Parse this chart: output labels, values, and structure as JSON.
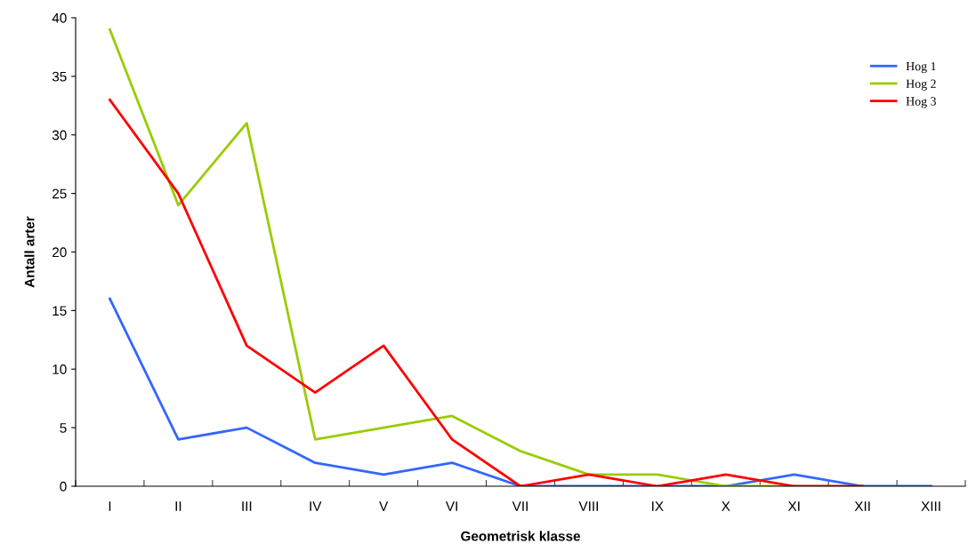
{
  "chart_data": {
    "type": "line",
    "xlabel": "Geometrisk klasse",
    "ylabel": "Antall arter",
    "categories": [
      "I",
      "II",
      "III",
      "IV",
      "V",
      "VI",
      "VII",
      "VIII",
      "IX",
      "X",
      "XI",
      "XII",
      "XIII"
    ],
    "series": [
      {
        "name": "Hog 1",
        "color": "#3366ff",
        "values": [
          16,
          4,
          5,
          2,
          1,
          2,
          0,
          0,
          0,
          0,
          1,
          0,
          0
        ]
      },
      {
        "name": "Hog 2",
        "color": "#99cc00",
        "values": [
          39,
          24,
          31,
          4,
          5,
          6,
          3,
          1,
          1,
          0,
          0,
          null,
          null
        ]
      },
      {
        "name": "Hog 3",
        "color": "#ff0000",
        "values": [
          33,
          25,
          12,
          8,
          12,
          4,
          0,
          1,
          0,
          1,
          0,
          0,
          null
        ]
      }
    ],
    "ylim": [
      0,
      40
    ],
    "yticks": [
      0,
      5,
      10,
      15,
      20,
      25,
      30,
      35,
      40
    ],
    "grid": false,
    "legend": "top right",
    "marker": "none",
    "line_style": "solid"
  }
}
